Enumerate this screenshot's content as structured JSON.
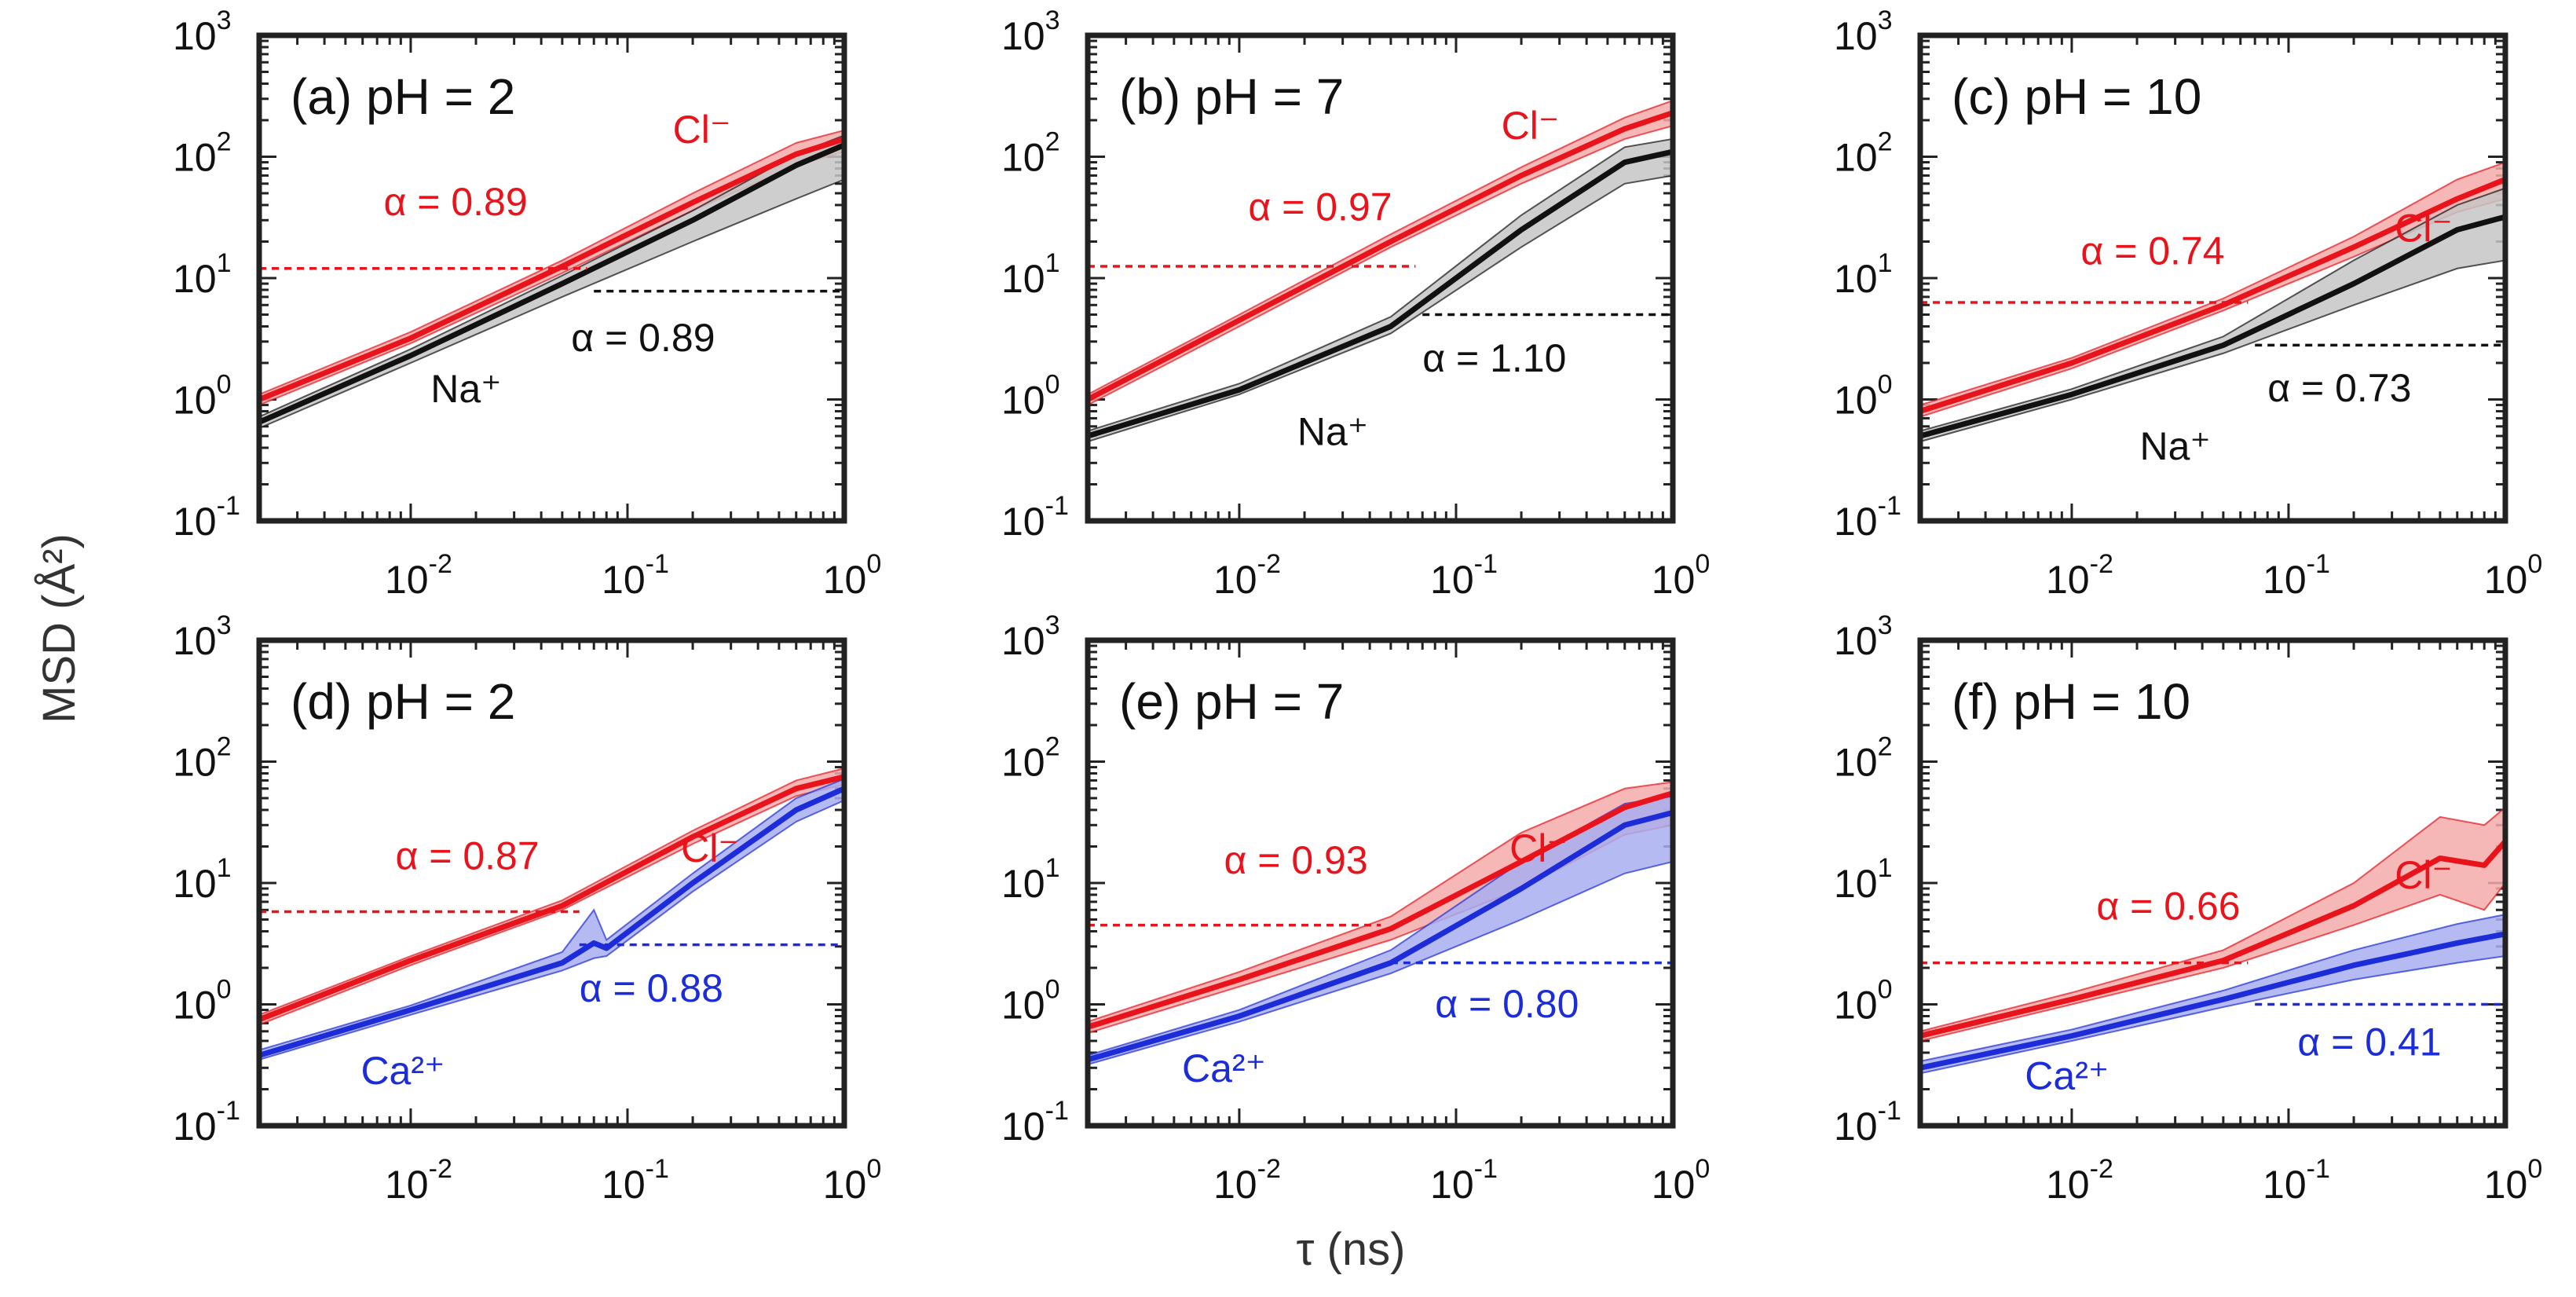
{
  "figure": {
    "ylabel": "MSD (Å²)",
    "xlabel": "τ (ns)"
  },
  "colors": {
    "red": "#e8131b",
    "black": "#111111",
    "blue": "#1c2cd8",
    "red_band": "#f4aaaa",
    "black_band": "#c6c6c6",
    "blue_band": "#a8aef0"
  },
  "chart_data": [
    {
      "type": "line",
      "panel": "a",
      "title": "(a) pH = 2",
      "xscale": "log",
      "yscale": "log",
      "xlim": [
        0.002,
        1
      ],
      "ylim": [
        0.1,
        1000
      ],
      "xticks": [
        0.01,
        0.1,
        1
      ],
      "yticks": [
        0.1,
        1,
        10,
        100,
        1000
      ],
      "series": [
        {
          "name": "Cl⁻",
          "label": "Cl⁻",
          "color": "red",
          "x": [
            0.002,
            0.01,
            0.05,
            0.2,
            0.6,
            1.0
          ],
          "y": [
            1.0,
            3.2,
            12.5,
            42,
            105,
            140
          ],
          "band": [
            [
              0.9,
              1.1
            ],
            [
              2.9,
              3.6
            ],
            [
              11,
              14
            ],
            [
              36,
              50
            ],
            [
              85,
              130
            ],
            [
              110,
              165
            ]
          ]
        },
        {
          "name": "Na⁺",
          "label": "Na⁺",
          "color": "black",
          "x": [
            0.002,
            0.01,
            0.05,
            0.2,
            0.6,
            1.0
          ],
          "y": [
            0.65,
            2.3,
            9.0,
            30,
            85,
            125
          ],
          "band": [
            [
              0.58,
              0.72
            ],
            [
              2.0,
              2.6
            ],
            [
              7.0,
              10.5
            ],
            [
              20,
              36
            ],
            [
              45,
              105
            ],
            [
              65,
              150
            ]
          ]
        }
      ],
      "annotations": [
        {
          "text": "α = 0.89",
          "color": "red",
          "ref_y": 12.0,
          "ref_x_end": 0.065
        },
        {
          "text": "α = 0.89",
          "color": "black",
          "ref_y": 7.8,
          "ref_x_start": 0.07
        }
      ]
    },
    {
      "type": "line",
      "panel": "b",
      "title": "(b) pH = 7",
      "xscale": "log",
      "yscale": "log",
      "xlim": [
        0.002,
        1
      ],
      "ylim": [
        0.1,
        1000
      ],
      "xticks": [
        0.01,
        0.1,
        1
      ],
      "yticks": [
        0.1,
        1,
        10,
        100,
        1000
      ],
      "series": [
        {
          "name": "Cl⁻",
          "label": "Cl⁻",
          "color": "red",
          "x": [
            0.002,
            0.01,
            0.05,
            0.2,
            0.6,
            1.0
          ],
          "y": [
            1.0,
            4.5,
            20,
            70,
            170,
            230
          ],
          "band": [
            [
              0.9,
              1.1
            ],
            [
              4.0,
              5.0
            ],
            [
              18,
              23
            ],
            [
              60,
              82
            ],
            [
              140,
              210
            ],
            [
              180,
              290
            ]
          ]
        },
        {
          "name": "Na⁺",
          "label": "Na⁺",
          "color": "black",
          "x": [
            0.002,
            0.01,
            0.05,
            0.2,
            0.6,
            1.0
          ],
          "y": [
            0.5,
            1.2,
            4.0,
            25,
            90,
            110
          ],
          "band": [
            [
              0.45,
              0.55
            ],
            [
              1.1,
              1.35
            ],
            [
              3.5,
              4.8
            ],
            [
              18,
              33
            ],
            [
              60,
              120
            ],
            [
              70,
              140
            ]
          ]
        }
      ],
      "annotations": [
        {
          "text": "α = 0.97",
          "color": "red",
          "ref_y": 12.5,
          "ref_x_end": 0.065
        },
        {
          "text": "α = 1.10",
          "color": "black",
          "ref_y": 5.0,
          "ref_x_start": 0.07
        }
      ]
    },
    {
      "type": "line",
      "panel": "c",
      "title": "(c) pH = 10",
      "xscale": "log",
      "yscale": "log",
      "xlim": [
        0.002,
        1
      ],
      "ylim": [
        0.1,
        1000
      ],
      "xticks": [
        0.01,
        0.1,
        1
      ],
      "yticks": [
        0.1,
        1,
        10,
        100,
        1000
      ],
      "series": [
        {
          "name": "Cl⁻",
          "label": "Cl⁻",
          "color": "red",
          "x": [
            0.002,
            0.01,
            0.05,
            0.2,
            0.6,
            1.0
          ],
          "y": [
            0.8,
            2.0,
            6.0,
            18,
            45,
            65
          ],
          "band": [
            [
              0.72,
              0.9
            ],
            [
              1.8,
              2.2
            ],
            [
              5.4,
              6.8
            ],
            [
              15,
              22
            ],
            [
              35,
              65
            ],
            [
              45,
              90
            ]
          ]
        },
        {
          "name": "Na⁺",
          "label": "Na⁺",
          "color": "black",
          "x": [
            0.002,
            0.01,
            0.05,
            0.2,
            0.6,
            1.0
          ],
          "y": [
            0.5,
            1.1,
            2.8,
            9.0,
            25,
            32
          ],
          "band": [
            [
              0.45,
              0.55
            ],
            [
              1.0,
              1.22
            ],
            [
              2.4,
              3.3
            ],
            [
              6.0,
              14
            ],
            [
              12,
              40
            ],
            [
              14,
              55
            ]
          ]
        }
      ],
      "annotations": [
        {
          "text": "α = 0.74",
          "color": "red",
          "ref_y": 6.3,
          "ref_x_end": 0.065
        },
        {
          "text": "α = 0.73",
          "color": "black",
          "ref_y": 2.8,
          "ref_x_start": 0.07
        }
      ]
    },
    {
      "type": "line",
      "panel": "d",
      "title": "(d) pH = 2",
      "xscale": "log",
      "yscale": "log",
      "xlim": [
        0.002,
        1
      ],
      "ylim": [
        0.1,
        1000
      ],
      "xticks": [
        0.01,
        0.1,
        1
      ],
      "yticks": [
        0.1,
        1,
        10,
        100,
        1000
      ],
      "series": [
        {
          "name": "Cl⁻",
          "label": "Cl⁻",
          "color": "red",
          "x": [
            0.002,
            0.01,
            0.05,
            0.2,
            0.6,
            1.0
          ],
          "y": [
            0.75,
            2.3,
            6.5,
            24,
            60,
            75
          ],
          "band": [
            [
              0.68,
              0.82
            ],
            [
              2.1,
              2.5
            ],
            [
              6.0,
              7.2
            ],
            [
              21,
              27
            ],
            [
              52,
              70
            ],
            [
              65,
              88
            ]
          ]
        },
        {
          "name": "Ca²⁺",
          "label": "Ca²⁺",
          "color": "blue",
          "x": [
            0.002,
            0.01,
            0.05,
            0.07,
            0.08,
            0.2,
            0.6,
            1.0
          ],
          "y": [
            0.38,
            0.9,
            2.2,
            3.2,
            2.9,
            10,
            40,
            60
          ],
          "band": [
            [
              0.35,
              0.42
            ],
            [
              0.82,
              0.98
            ],
            [
              1.9,
              2.7
            ],
            [
              2.4,
              6.0
            ],
            [
              2.5,
              3.4
            ],
            [
              8.5,
              12
            ],
            [
              32,
              50
            ],
            [
              48,
              72
            ]
          ]
        }
      ],
      "annotations": [
        {
          "text": "α = 0.87",
          "color": "red",
          "ref_y": 5.8,
          "ref_x_end": 0.06
        },
        {
          "text": "α = 0.88",
          "color": "blue",
          "ref_y": 3.1,
          "ref_x_start": 0.06
        }
      ]
    },
    {
      "type": "line",
      "panel": "e",
      "title": "(e) pH = 7",
      "xscale": "log",
      "yscale": "log",
      "xlim": [
        0.002,
        1
      ],
      "ylim": [
        0.1,
        1000
      ],
      "xticks": [
        0.01,
        0.1,
        1
      ],
      "yticks": [
        0.1,
        1,
        10,
        100,
        1000
      ],
      "series": [
        {
          "name": "Cl⁻",
          "label": "Cl⁻",
          "color": "red",
          "x": [
            0.002,
            0.01,
            0.05,
            0.2,
            0.6,
            1.0
          ],
          "y": [
            0.65,
            1.6,
            4.2,
            15,
            42,
            55
          ],
          "band": [
            [
              0.58,
              0.72
            ],
            [
              1.4,
              1.85
            ],
            [
              3.4,
              5.3
            ],
            [
              9,
              26
            ],
            [
              25,
              60
            ],
            [
              30,
              68
            ]
          ]
        },
        {
          "name": "Ca²⁺",
          "label": "Ca²⁺",
          "color": "blue",
          "x": [
            0.002,
            0.01,
            0.05,
            0.2,
            0.6,
            1.0
          ],
          "y": [
            0.35,
            0.8,
            2.2,
            9,
            30,
            38
          ],
          "band": [
            [
              0.32,
              0.38
            ],
            [
              0.72,
              0.9
            ],
            [
              1.8,
              2.8
            ],
            [
              5,
              15
            ],
            [
              12,
              45
            ],
            [
              15,
              52
            ]
          ]
        }
      ],
      "annotations": [
        {
          "text": "α = 0.93",
          "color": "red",
          "ref_y": 4.5,
          "ref_x_end": 0.045
        },
        {
          "text": "α = 0.80",
          "color": "blue",
          "ref_y": 2.2,
          "ref_x_start": 0.05
        }
      ]
    },
    {
      "type": "line",
      "panel": "f",
      "title": "(f) pH = 10",
      "xscale": "log",
      "yscale": "log",
      "xlim": [
        0.002,
        1
      ],
      "ylim": [
        0.1,
        1000
      ],
      "xticks": [
        0.01,
        0.1,
        1
      ],
      "yticks": [
        0.1,
        1,
        10,
        100,
        1000
      ],
      "series": [
        {
          "name": "Cl⁻",
          "label": "Cl⁻",
          "color": "red",
          "x": [
            0.002,
            0.01,
            0.05,
            0.2,
            0.5,
            0.8,
            1.0
          ],
          "y": [
            0.55,
            1.1,
            2.3,
            6.5,
            16,
            14,
            22
          ],
          "band": [
            [
              0.5,
              0.6
            ],
            [
              1.0,
              1.25
            ],
            [
              2.0,
              2.8
            ],
            [
              4.5,
              10
            ],
            [
              8,
              35
            ],
            [
              6,
              30
            ],
            [
              10,
              42
            ]
          ]
        },
        {
          "name": "Ca²⁺",
          "label": "Ca²⁺",
          "color": "blue",
          "x": [
            0.002,
            0.01,
            0.05,
            0.2,
            0.6,
            1.0
          ],
          "y": [
            0.3,
            0.55,
            1.1,
            2.1,
            3.2,
            3.8
          ],
          "band": [
            [
              0.27,
              0.34
            ],
            [
              0.5,
              0.62
            ],
            [
              0.95,
              1.3
            ],
            [
              1.6,
              2.8
            ],
            [
              2.2,
              4.6
            ],
            [
              2.5,
              5.5
            ]
          ]
        }
      ],
      "annotations": [
        {
          "text": "α = 0.66",
          "color": "red",
          "ref_y": 2.2,
          "ref_x_end": 0.065
        },
        {
          "text": "α = 0.41",
          "color": "blue",
          "ref_y": 1.0,
          "ref_x_start": 0.07
        }
      ]
    }
  ]
}
